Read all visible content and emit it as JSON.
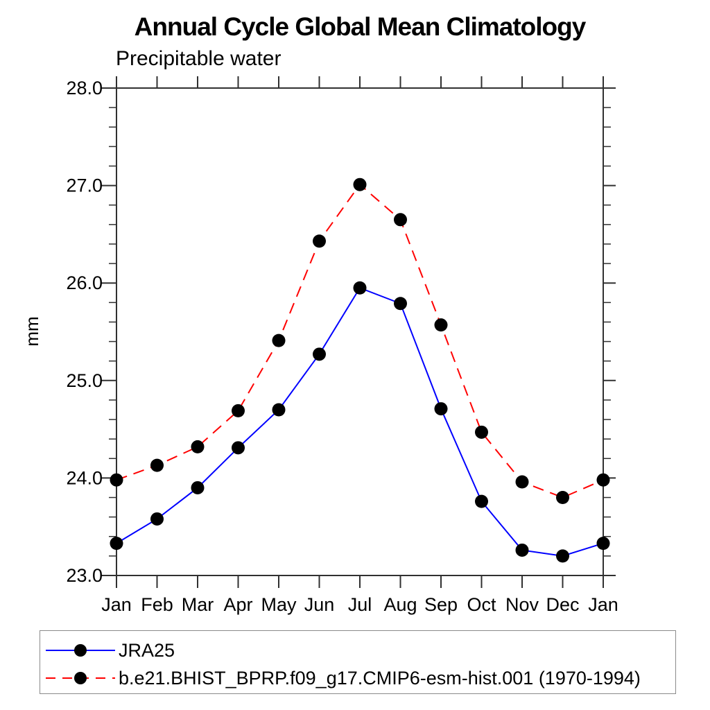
{
  "chart_data": {
    "type": "line",
    "title": "Annual Cycle Global Mean Climatology",
    "subtitle": "Precipitable water",
    "ylabel": "mm",
    "xlabel": "",
    "categories": [
      "Jan",
      "Feb",
      "Mar",
      "Apr",
      "May",
      "Jun",
      "Jul",
      "Aug",
      "Sep",
      "Oct",
      "Nov",
      "Dec",
      "Jan"
    ],
    "ylim": [
      23.0,
      28.0
    ],
    "ytick_labels": [
      "23.0",
      "24.0",
      "25.0",
      "26.0",
      "27.0",
      "28.0"
    ],
    "ytick_values": [
      23.0,
      24.0,
      25.0,
      26.0,
      27.0,
      28.0
    ],
    "ytick_minor_step": 0.2,
    "grid": false,
    "legend_position": "bottom-left",
    "marker": "filled-circle",
    "marker_color": "#000000",
    "frame_color": "#303030",
    "series": [
      {
        "name": "JRA25",
        "color": "#0000ff",
        "style": "solid",
        "values": [
          23.33,
          23.58,
          23.9,
          24.31,
          24.7,
          25.27,
          25.95,
          25.79,
          24.71,
          23.76,
          23.26,
          23.2,
          23.33
        ]
      },
      {
        "name": "b.e21.BHIST_BPRP.f09_g17.CMIP6-esm-hist.001 (1970-1994)",
        "color": "#ff0000",
        "style": "dashed",
        "values": [
          23.98,
          24.13,
          24.32,
          24.69,
          25.41,
          26.43,
          27.01,
          26.65,
          25.57,
          24.47,
          23.96,
          23.8,
          23.98
        ]
      }
    ]
  }
}
